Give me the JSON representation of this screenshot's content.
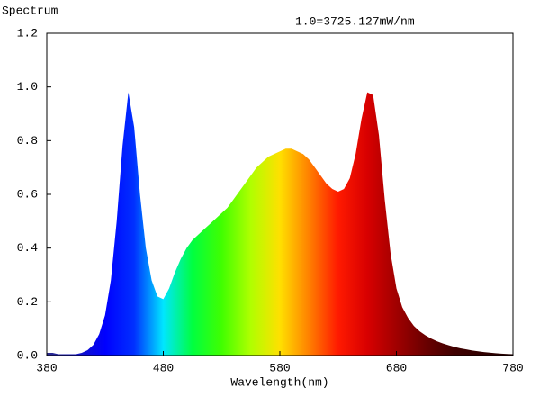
{
  "chart_data": {
    "type": "area",
    "title": "Spectrum",
    "annotation": "1.0=3725.127mW/nm",
    "x_label": "Wavelength(nm)",
    "x": [
      380,
      385,
      390,
      395,
      400,
      405,
      410,
      415,
      420,
      425,
      430,
      435,
      440,
      445,
      450,
      455,
      460,
      465,
      470,
      475,
      480,
      485,
      490,
      495,
      500,
      505,
      510,
      515,
      520,
      525,
      530,
      535,
      540,
      545,
      550,
      555,
      560,
      565,
      570,
      575,
      580,
      585,
      590,
      595,
      600,
      605,
      610,
      615,
      620,
      625,
      630,
      635,
      640,
      645,
      650,
      655,
      660,
      665,
      670,
      675,
      680,
      685,
      690,
      695,
      700,
      705,
      710,
      715,
      720,
      725,
      730,
      735,
      740,
      745,
      750,
      755,
      760,
      765,
      770,
      775,
      780
    ],
    "values": [
      0.01,
      0.01,
      0.005,
      0.005,
      0.005,
      0.005,
      0.01,
      0.02,
      0.04,
      0.08,
      0.15,
      0.28,
      0.5,
      0.78,
      0.98,
      0.85,
      0.6,
      0.4,
      0.28,
      0.22,
      0.21,
      0.25,
      0.31,
      0.36,
      0.4,
      0.43,
      0.45,
      0.47,
      0.49,
      0.51,
      0.53,
      0.55,
      0.58,
      0.61,
      0.64,
      0.67,
      0.7,
      0.72,
      0.74,
      0.75,
      0.76,
      0.77,
      0.77,
      0.76,
      0.75,
      0.73,
      0.7,
      0.67,
      0.64,
      0.62,
      0.61,
      0.62,
      0.66,
      0.75,
      0.88,
      0.98,
      0.97,
      0.82,
      0.58,
      0.38,
      0.25,
      0.18,
      0.14,
      0.11,
      0.09,
      0.075,
      0.063,
      0.053,
      0.045,
      0.038,
      0.032,
      0.027,
      0.023,
      0.019,
      0.016,
      0.013,
      0.011,
      0.009,
      0.007,
      0.006,
      0.005
    ],
    "gradient_colors": [
      "#2a2a8a",
      "#1414c0",
      "#0000ff",
      "#0030ff",
      "#00e6ff",
      "#00ff40",
      "#40ff00",
      "#b0ff00",
      "#ffe000",
      "#ff8000",
      "#ff1a00",
      "#d80000",
      "#a00000",
      "#6a0000",
      "#400000",
      "#300000",
      "#200000"
    ],
    "xlim": [
      380,
      780
    ],
    "xticks": [
      380,
      480,
      580,
      680,
      780
    ],
    "ylim": [
      0,
      1.2
    ],
    "yticks": [
      {
        "value": 0,
        "label": "0.0"
      },
      0.2,
      0.4,
      0.6,
      0.8,
      {
        "value": 1,
        "label": "1.0"
      },
      1.2
    ]
  }
}
